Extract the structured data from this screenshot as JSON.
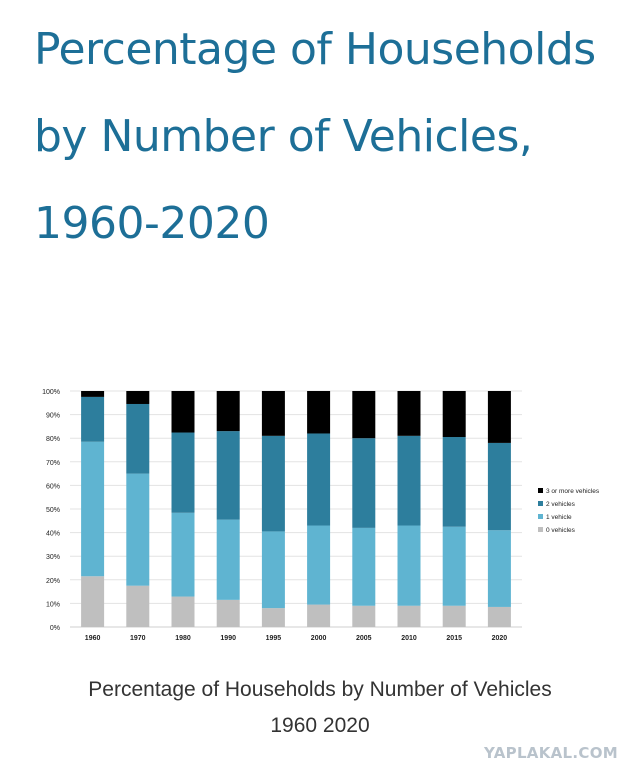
{
  "headline": "Percentage of Households by Number of Vehicles, 1960-2020",
  "caption": {
    "line1": "Percentage of Households by Number of Vehicles",
    "line2": "1960 2020"
  },
  "watermark": "YAPLAKAL.COM",
  "colors": {
    "headline": "#1d6f97",
    "0 vehicles": "#bfbfbf",
    "1 vehicle": "#5fb4d1",
    "2 vehicles": "#2d7e9d",
    "3 or more vehicles": "#000000"
  },
  "chart_data": {
    "type": "bar",
    "stacked": true,
    "title": "",
    "xlabel": "",
    "ylabel": "",
    "ylim": [
      0,
      100
    ],
    "y_tick_labels": [
      "0%",
      "10%",
      "20%",
      "30%",
      "40%",
      "50%",
      "60%",
      "70%",
      "80%",
      "90%",
      "100%"
    ],
    "grid": true,
    "legend_position": "right",
    "categories": [
      "1960",
      "1970",
      "1980",
      "1990",
      "1995",
      "2000",
      "2005",
      "2010",
      "2015",
      "2020"
    ],
    "series": [
      {
        "name": "0 vehicles",
        "values": [
          21.5,
          17.5,
          12.9,
          11.5,
          8.0,
          9.5,
          9.0,
          9.0,
          9.0,
          8.5
        ]
      },
      {
        "name": "1 vehicle",
        "values": [
          57.0,
          47.5,
          35.5,
          34.0,
          32.5,
          33.5,
          33.0,
          34.0,
          33.5,
          32.5
        ]
      },
      {
        "name": "2 vehicles",
        "values": [
          19.0,
          29.5,
          34.0,
          37.5,
          40.5,
          39.0,
          38.0,
          38.0,
          38.0,
          37.0
        ]
      },
      {
        "name": "3 or more vehicles",
        "values": [
          2.5,
          5.5,
          17.6,
          17.0,
          19.0,
          18.0,
          20.0,
          19.0,
          19.5,
          22.0
        ]
      }
    ]
  }
}
